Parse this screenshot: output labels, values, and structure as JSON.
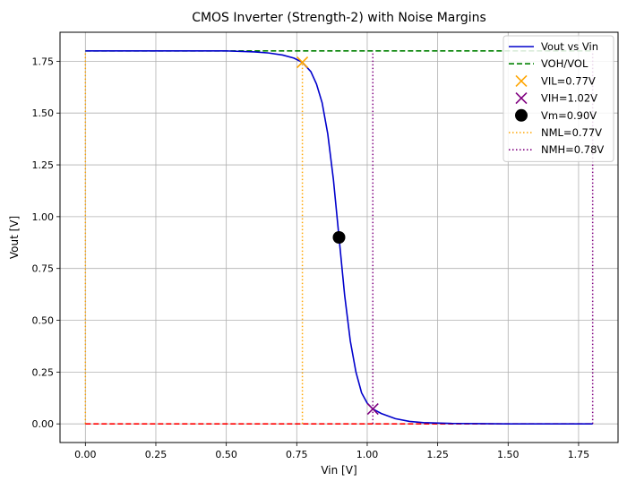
{
  "chart_data": {
    "type": "line",
    "title": "CMOS Inverter (Strength-2) with Noise Margins",
    "xlabel": "Vin [V]",
    "ylabel": "Vout [V]",
    "xlim": [
      -0.09,
      1.89
    ],
    "ylim": [
      -0.09,
      1.89
    ],
    "xticks": [
      "0.00",
      "0.25",
      "0.50",
      "0.75",
      "1.00",
      "1.25",
      "1.50",
      "1.75"
    ],
    "yticks": [
      "0.00",
      "0.25",
      "0.50",
      "0.75",
      "1.00",
      "1.25",
      "1.50",
      "1.75"
    ],
    "grid": true,
    "legend_position": "top-right",
    "vdd": 1.8,
    "series": [
      {
        "name": "Vout vs Vin",
        "style": "solid",
        "color": "#0000cc",
        "x": [
          0,
          0.1,
          0.2,
          0.3,
          0.4,
          0.5,
          0.6,
          0.65,
          0.7,
          0.74,
          0.77,
          0.8,
          0.82,
          0.84,
          0.86,
          0.88,
          0.9,
          0.92,
          0.94,
          0.96,
          0.98,
          1.0,
          1.02,
          1.05,
          1.1,
          1.15,
          1.2,
          1.3,
          1.4,
          1.5,
          1.6,
          1.7,
          1.8
        ],
        "y": [
          1.8,
          1.8,
          1.8,
          1.8,
          1.8,
          1.8,
          1.795,
          1.79,
          1.78,
          1.765,
          1.745,
          1.7,
          1.64,
          1.55,
          1.4,
          1.18,
          0.9,
          0.62,
          0.4,
          0.25,
          0.15,
          0.1,
          0.072,
          0.05,
          0.025,
          0.012,
          0.006,
          0.002,
          0.001,
          0,
          0,
          0,
          0
        ]
      },
      {
        "name": "VOH/VOL",
        "style": "dashed",
        "color": "#008000",
        "x": [
          0,
          1.8
        ],
        "y": [
          1.8,
          1.8
        ]
      },
      {
        "name": "",
        "style": "dashed",
        "color": "#ff0000",
        "x": [
          0,
          1.8
        ],
        "y": [
          0,
          0
        ]
      }
    ],
    "markers": [
      {
        "name": "VIL=0.77V",
        "shape": "x",
        "color": "#ffa500",
        "x": 0.77,
        "y": 1.745
      },
      {
        "name": "VIH=1.02V",
        "shape": "x",
        "color": "#800080",
        "x": 1.02,
        "y": 0.072
      },
      {
        "name": "Vm=0.90V",
        "shape": "circle",
        "color": "#000000",
        "x": 0.9,
        "y": 0.9
      }
    ],
    "vlines": [
      {
        "name": "NML=0.77V",
        "color": "#ffa500",
        "lines": [
          {
            "x": 0,
            "y0": 0,
            "y1": 1.8
          },
          {
            "x": 0.77,
            "y0": 0,
            "y1": 1.745
          }
        ]
      },
      {
        "name": "NMH=0.78V",
        "color": "#800080",
        "lines": [
          {
            "x": 1.02,
            "y0": 0,
            "y1": 1.8
          },
          {
            "x": 1.8,
            "y0": 0,
            "y1": 1.8
          }
        ]
      }
    ],
    "legend": [
      {
        "label": "Vout vs Vin",
        "kind": "solid",
        "color": "#0000cc"
      },
      {
        "label": "VOH/VOL",
        "kind": "dashed",
        "color": "#008000"
      },
      {
        "label": "VIL=0.77V",
        "kind": "x",
        "color": "#ffa500"
      },
      {
        "label": "VIH=1.02V",
        "kind": "x",
        "color": "#800080"
      },
      {
        "label": "Vm=0.90V",
        "kind": "circle",
        "color": "#000000"
      },
      {
        "label": "NML=0.77V",
        "kind": "dotted",
        "color": "#ffa500"
      },
      {
        "label": "NMH=0.78V",
        "kind": "dotted",
        "color": "#800080"
      }
    ]
  }
}
